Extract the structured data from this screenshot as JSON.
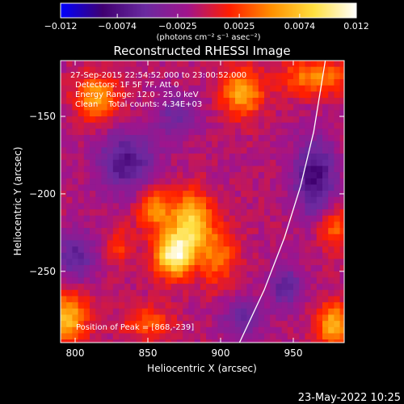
{
  "chart_data": {
    "type": "heatmap",
    "title": "Reconstructed RHESSI Image",
    "xlabel": "Heliocentric X (arcsec)",
    "ylabel": "Heliocentric Y (arcsec)",
    "xlim": [
      790,
      985
    ],
    "ylim": [
      -296,
      -114
    ],
    "x_ticks": [
      800,
      850,
      900,
      950
    ],
    "y_ticks": [
      -150,
      -200,
      -250
    ],
    "colorbar": {
      "min": -0.012,
      "max": 0.012,
      "tick_values": [
        -0.012,
        -0.0074,
        -0.0025,
        0.0025,
        0.0074,
        0.012
      ],
      "tick_labels": [
        "−0.012",
        "−0.0074",
        "−0.0025",
        "0.0025",
        "0.0074",
        "0.012"
      ],
      "unit_label": "(photons cm⁻² s⁻¹ asec⁻²)"
    },
    "info_lines": [
      "27-Sep-2015 22:54:52.000 to 23:00:52.000",
      "Detectors: 1F 5F 7F, Att 0",
      "Energy Range: 12.0 - 25.0 keV",
      "Clean    Total counts: 4.34E+03"
    ],
    "peak_label": "Position of Peak = [868,-239]",
    "peak": [
      868,
      -239
    ],
    "limb_curve": [
      [
        913,
        -296
      ],
      [
        930,
        -262
      ],
      [
        944,
        -228
      ],
      [
        955,
        -195
      ],
      [
        964,
        -160
      ],
      [
        972,
        -114
      ]
    ],
    "grid": false,
    "legend": "none",
    "sources": [
      {
        "x": 868,
        "y": -239,
        "amp": 0.012,
        "sx": 9,
        "sy": 10
      },
      {
        "x": 880,
        "y": -218,
        "amp": 0.009,
        "sx": 9,
        "sy": 13
      },
      {
        "x": 855,
        "y": -210,
        "amp": 0.006,
        "sx": 9,
        "sy": 10
      },
      {
        "x": 898,
        "y": -240,
        "amp": 0.005,
        "sx": 9,
        "sy": 14
      },
      {
        "x": 815,
        "y": -138,
        "amp": 0.007,
        "sx": 10,
        "sy": 10
      },
      {
        "x": 915,
        "y": -135,
        "amp": 0.007,
        "sx": 10,
        "sy": 11
      },
      {
        "x": 965,
        "y": -125,
        "amp": 0.006,
        "sx": 16,
        "sy": 8
      },
      {
        "x": 795,
        "y": -280,
        "amp": 0.008,
        "sx": 9,
        "sy": 12
      },
      {
        "x": 978,
        "y": -285,
        "amp": 0.008,
        "sx": 8,
        "sy": 10
      },
      {
        "x": 978,
        "y": -222,
        "amp": 0.005,
        "sx": 8,
        "sy": 10
      },
      {
        "x": 830,
        "y": -233,
        "amp": 0.0035,
        "sx": 6,
        "sy": 8
      },
      {
        "x": 850,
        "y": -283,
        "amp": 0.004,
        "sx": 12,
        "sy": 8
      },
      {
        "x": 835,
        "y": -180,
        "amp": -0.006,
        "sx": 14,
        "sy": 14
      },
      {
        "x": 965,
        "y": -190,
        "amp": -0.007,
        "sx": 10,
        "sy": 18
      },
      {
        "x": 800,
        "y": -240,
        "amp": -0.005,
        "sx": 10,
        "sy": 12
      },
      {
        "x": 915,
        "y": -280,
        "amp": -0.004,
        "sx": 10,
        "sy": 10
      },
      {
        "x": 945,
        "y": -260,
        "amp": -0.005,
        "sx": 8,
        "sy": 10
      },
      {
        "x": 870,
        "y": -150,
        "amp": -0.004,
        "sx": 10,
        "sy": 10
      }
    ],
    "background_level": -0.001
  },
  "timestamp": "23-May-2022 10:25",
  "colors": {
    "background": "#000000",
    "foreground": "#ffffff",
    "colormap": [
      "#0000ff",
      "#400070",
      "#6a2aa0",
      "#a0148c",
      "#ff1e00",
      "#ff9000",
      "#ffe040",
      "#ffffff"
    ]
  }
}
